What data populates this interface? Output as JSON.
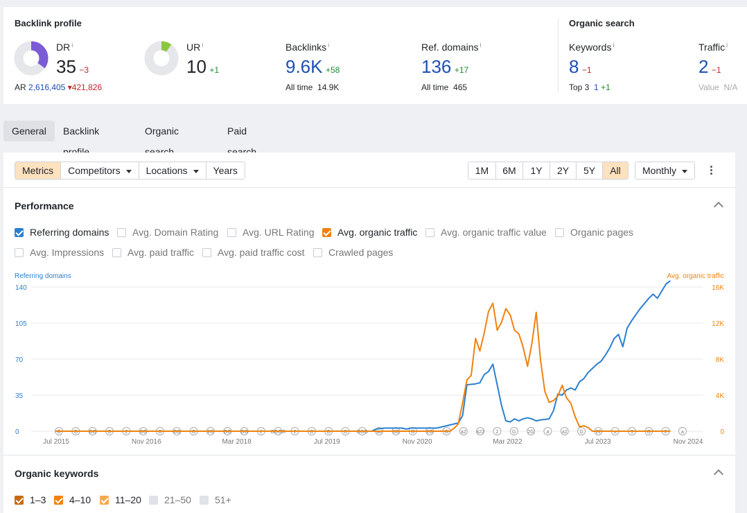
{
  "backlink_profile": {
    "title": "Backlink profile",
    "dr": {
      "label": "DR",
      "info": "i",
      "value": "35",
      "change": "−3",
      "score": 35,
      "color": "#7b5bd6"
    },
    "ur": {
      "label": "UR",
      "info": "i",
      "value": "10",
      "change": "+1",
      "score": 10,
      "color": "#8cc63f"
    },
    "ar": {
      "label": "AR",
      "value": "2,616,405",
      "change": "421,826"
    },
    "backlinks": {
      "label": "Backlinks",
      "info": "i",
      "value": "9.6K",
      "change": "+58",
      "sub_label": "All time",
      "sub_value": "14.9K"
    },
    "ref_domains": {
      "label": "Ref. domains",
      "info": "i",
      "value": "136",
      "change": "+17",
      "sub_label": "All time",
      "sub_value": "465"
    }
  },
  "organic_search": {
    "title": "Organic search",
    "keywords": {
      "label": "Keywords",
      "info": "i",
      "value": "8",
      "change": "−1",
      "sub_label": "Top 3",
      "sub_value": "1",
      "sub_change": "+1"
    },
    "traffic": {
      "label": "Traffic",
      "info": "i",
      "value": "2",
      "change": "−1",
      "sub_label": "Value",
      "sub_value": "N/A"
    }
  },
  "tabs": [
    "General",
    "Backlink profile",
    "Organic search",
    "Paid search"
  ],
  "toolbar": {
    "metrics": "Metrics",
    "competitors": "Competitors",
    "locations": "Locations",
    "years": "Years",
    "ranges": [
      "1M",
      "6M",
      "1Y",
      "2Y",
      "5Y",
      "All"
    ],
    "active_range": "All",
    "interval": "Monthly"
  },
  "performance": {
    "title": "Performance",
    "checkboxes_row1": [
      {
        "label": "Referring domains",
        "checked": true,
        "color": "#2a7fd0"
      },
      {
        "label": "Avg. Domain Rating",
        "checked": false
      },
      {
        "label": "Avg. URL Rating",
        "checked": false
      },
      {
        "label": "Avg. organic traffic",
        "checked": true,
        "color": "#f0820f"
      },
      {
        "label": "Avg. organic traffic value",
        "checked": false
      },
      {
        "label": "Organic pages",
        "checked": false
      }
    ],
    "checkboxes_row2": [
      {
        "label": "Avg. Impressions",
        "checked": false
      },
      {
        "label": "Avg. paid traffic",
        "checked": false
      },
      {
        "label": "Avg. paid traffic cost",
        "checked": false
      },
      {
        "label": "Crawled pages",
        "checked": false
      }
    ]
  },
  "chart_data": {
    "type": "line",
    "left_axis_title": "Referring domains",
    "right_axis_title": "Avg. organic traffic",
    "left_ticks": [
      0,
      35,
      70,
      105,
      140
    ],
    "right_ticks": [
      "0",
      "4K",
      "8K",
      "12K",
      "16K"
    ],
    "left_ylim": [
      0,
      140
    ],
    "right_ylim": [
      0,
      16000
    ],
    "x_ticks": [
      "Jul 2015",
      "Nov 2016",
      "Mar 2018",
      "Jul 2019",
      "Nov 2020",
      "Mar 2022",
      "Jul 2023",
      "Nov 2024"
    ],
    "grid": true,
    "series": [
      {
        "name": "Referring domains",
        "axis": "left",
        "color": "#2a7fd0",
        "points": [
          [
            0,
            0
          ],
          [
            73,
            0
          ],
          [
            74,
            2
          ],
          [
            76,
            3
          ],
          [
            80,
            3
          ],
          [
            81,
            2
          ],
          [
            82,
            3
          ],
          [
            88,
            3
          ],
          [
            89,
            4
          ],
          [
            90,
            5
          ],
          [
            91,
            6
          ],
          [
            92,
            7
          ],
          [
            93,
            8
          ],
          [
            94,
            15
          ],
          [
            95,
            45
          ],
          [
            97,
            46
          ],
          [
            98,
            47
          ],
          [
            99,
            55
          ],
          [
            100,
            58
          ],
          [
            101,
            65
          ],
          [
            102,
            45
          ],
          [
            103,
            25
          ],
          [
            104,
            10
          ],
          [
            105,
            9
          ],
          [
            106,
            12
          ],
          [
            107,
            10
          ],
          [
            108,
            12
          ],
          [
            109,
            13
          ],
          [
            110,
            12
          ],
          [
            111,
            10
          ],
          [
            112,
            11
          ],
          [
            114,
            12
          ],
          [
            115,
            20
          ],
          [
            116,
            36
          ],
          [
            117,
            35
          ],
          [
            118,
            40
          ],
          [
            119,
            42
          ],
          [
            120,
            40
          ],
          [
            121,
            48
          ],
          [
            122,
            51
          ],
          [
            123,
            57
          ],
          [
            124,
            61
          ],
          [
            125,
            65
          ],
          [
            126,
            68
          ],
          [
            127,
            74
          ],
          [
            128,
            81
          ],
          [
            129,
            90
          ],
          [
            130,
            94
          ],
          [
            131,
            82
          ],
          [
            132,
            100
          ],
          [
            133,
            107
          ],
          [
            134,
            113
          ],
          [
            135,
            119
          ],
          [
            136,
            124
          ],
          [
            137,
            129
          ],
          [
            138,
            133
          ],
          [
            139,
            129
          ],
          [
            140,
            136
          ],
          [
            141,
            143
          ],
          [
            142,
            146
          ]
        ]
      },
      {
        "name": "Avg. organic traffic",
        "axis": "right",
        "color": "#f0820f",
        "points": [
          [
            0,
            0
          ],
          [
            91,
            0
          ],
          [
            92,
            300
          ],
          [
            93,
            800
          ],
          [
            94,
            3100
          ],
          [
            95,
            5700
          ],
          [
            96,
            6200
          ],
          [
            97,
            10300
          ],
          [
            98,
            8900
          ],
          [
            99,
            10900
          ],
          [
            100,
            13300
          ],
          [
            101,
            14200
          ],
          [
            102,
            11200
          ],
          [
            103,
            12100
          ],
          [
            104,
            13600
          ],
          [
            105,
            12900
          ],
          [
            106,
            11200
          ],
          [
            107,
            10800
          ],
          [
            108,
            9300
          ],
          [
            109,
            7200
          ],
          [
            110,
            9700
          ],
          [
            111,
            13200
          ],
          [
            112,
            7900
          ],
          [
            113,
            4400
          ],
          [
            114,
            3200
          ],
          [
            115,
            3400
          ],
          [
            116,
            3900
          ],
          [
            117,
            5100
          ],
          [
            118,
            3700
          ],
          [
            119,
            3100
          ],
          [
            120,
            1600
          ],
          [
            121,
            500
          ],
          [
            122,
            600
          ],
          [
            123,
            400
          ],
          [
            124,
            0
          ],
          [
            142,
            0
          ]
        ]
      }
    ],
    "x_index_range": [
      0,
      148
    ],
    "annotations": [
      "G",
      "G",
      "GG",
      "G",
      "2",
      "GG",
      "G",
      "GG",
      "G",
      "2G",
      "GG",
      "GG",
      "2",
      "GGGG",
      "2",
      "G",
      "G",
      "G",
      "GGG",
      "aa",
      "3G",
      "G",
      "2G",
      "G",
      "a2",
      "a22",
      "2",
      "G",
      "2G",
      "a",
      "a2",
      "G",
      "22",
      "a",
      "3",
      "G",
      "2",
      "a"
    ]
  },
  "organic_keywords": {
    "title": "Organic keywords",
    "checkboxes": [
      {
        "label": "1–3",
        "checked": true,
        "color": "#c76a0e"
      },
      {
        "label": "4–10",
        "checked": true,
        "color": "#f0820f"
      },
      {
        "label": "11–20",
        "checked": true,
        "color": "#f7a950"
      },
      {
        "label": "21–50",
        "checked": false
      },
      {
        "label": "51+",
        "checked": false
      }
    ]
  },
  "colors": {
    "accent_blue": "#1d4fb3",
    "line_blue": "#2a7fd0",
    "line_orange": "#f0820f",
    "neg": "#c0242b",
    "pos": "#1f8a2f"
  }
}
